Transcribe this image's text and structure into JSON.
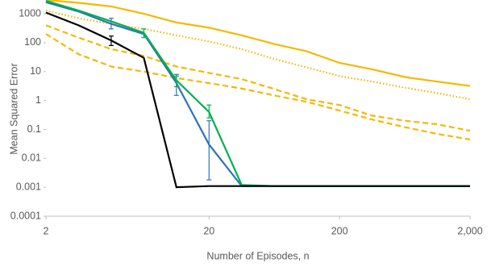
{
  "chart_data": {
    "type": "line",
    "y_label": "Mean Squared Error",
    "x_label": "Number of Episodes, n",
    "categories": [
      "2",
      null,
      null,
      null,
      null,
      "20",
      null,
      null,
      null,
      "200",
      null,
      null,
      null,
      "2,000"
    ],
    "ylim": [
      0.0001,
      3000
    ],
    "log_y": true,
    "yticks": [
      0.0001,
      0.001,
      0.01,
      0.1,
      1,
      10,
      100,
      1000
    ],
    "series": [
      {
        "color": "#f5b800",
        "dash": "solid",
        "values": [
          3000,
          2400,
          1800,
          1000,
          500,
          330,
          180,
          90,
          50,
          20,
          12,
          6.5,
          4.5,
          3.2
        ]
      },
      {
        "color": "#f5b800",
        "dash": "dot",
        "values": [
          1300,
          700,
          450,
          300,
          180,
          110,
          60,
          27,
          14,
          7,
          4.5,
          2.8,
          1.8,
          1.1
        ]
      },
      {
        "color": "#f5b800",
        "dash": "dash",
        "values": [
          400,
          150,
          60,
          35,
          15,
          9,
          5.5,
          2.5,
          1.1,
          0.7,
          0.3,
          0.2,
          0.15,
          0.09
        ]
      },
      {
        "color": "#f5b800",
        "dash": "dash",
        "values": [
          200,
          40,
          15,
          10,
          6,
          4,
          2.6,
          1.5,
          0.9,
          0.45,
          0.22,
          0.12,
          0.07,
          0.045
        ]
      },
      {
        "color": "#2e75b6",
        "dash": "solid",
        "values": [
          2500,
          1200,
          450,
          200,
          4,
          0.03,
          0.0011,
          0.0011,
          0.0011,
          0.0011,
          0.0011,
          0.0011,
          0.0011,
          0.0011
        ],
        "error_low": [
          null,
          null,
          300,
          null,
          1.5,
          0.0018,
          null,
          null,
          null,
          null,
          null,
          null,
          null,
          null
        ],
        "error_high": [
          null,
          null,
          700,
          null,
          8,
          0.2,
          null,
          null,
          null,
          null,
          null,
          null,
          null,
          null
        ]
      },
      {
        "color": "#00b050",
        "dash": "solid",
        "values": [
          2800,
          1300,
          550,
          220,
          5,
          0.4,
          0.0012,
          0.0011,
          0.0011,
          0.0011,
          0.0011,
          0.0011,
          0.0011,
          0.0011
        ],
        "error_low": [
          null,
          null,
          null,
          150,
          3,
          0.25,
          null,
          null,
          null,
          null,
          null,
          null,
          null,
          null
        ],
        "error_high": [
          null,
          null,
          null,
          300,
          7,
          0.7,
          null,
          null,
          null,
          null,
          null,
          null,
          null,
          null
        ]
      },
      {
        "color": "#000000",
        "dash": "solid",
        "values": [
          1100,
          400,
          120,
          30,
          0.001,
          0.0011,
          0.0011,
          0.0011,
          0.0011,
          0.0011,
          0.0011,
          0.0011,
          0.0011,
          0.0011
        ],
        "error_low": [
          null,
          null,
          80,
          null,
          null,
          null,
          null,
          null,
          null,
          null,
          null,
          null,
          null,
          null
        ],
        "error_high": [
          null,
          null,
          170,
          null,
          null,
          null,
          null,
          null,
          null,
          null,
          null,
          null,
          null,
          null
        ]
      }
    ]
  }
}
